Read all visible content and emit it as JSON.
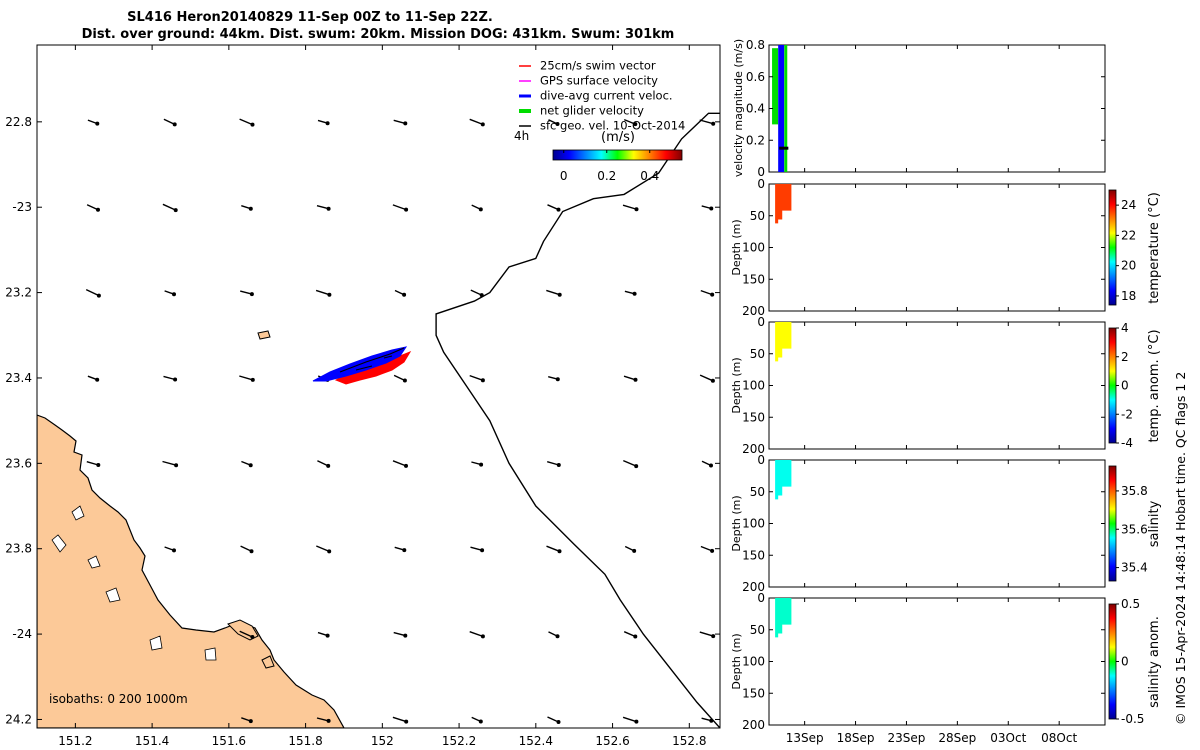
{
  "title": {
    "line1": "SL416 Heron20140829 11-Sep 00Z to 11-Sep 22Z.",
    "line2": "Dist. over ground: 44km. Dist. swum: 20km. Mission DOG: 431km. Swum: 301km"
  },
  "footer": "© IMOS 15-Apr-2024 14:48:14 Hobart time. QC flags 1 2",
  "chart_data": [
    {
      "type": "scatter",
      "name": "map",
      "xlim": [
        151.1,
        152.88
      ],
      "ylim": [
        -24.22,
        -22.62
      ],
      "x_ticks": [
        151.2,
        151.4,
        151.6,
        151.8,
        152,
        152.2,
        152.4,
        152.6,
        152.8
      ],
      "x_tick_labels": [
        "151.2",
        "151.4",
        "151.6",
        "151.8",
        "152",
        "152.2",
        "152.4",
        "152.6",
        "152.8"
      ],
      "y_ticks": [
        -22.8,
        -23,
        -23.2,
        -23.4,
        -23.6,
        -23.8,
        -24,
        -24.2
      ],
      "y_tick_labels": [
        "22.8",
        "-23",
        "23.2",
        "23.4",
        "23.6",
        "23.8",
        "-24",
        "24.2"
      ],
      "legend": [
        {
          "label": "25cm/s swim vector",
          "color": "#ff0000"
        },
        {
          "label": "GPS surface velocity",
          "color": "#ff00ff"
        },
        {
          "label": "dive-avg current veloc.",
          "color": "#0000ff"
        },
        {
          "label": "net glider velocity",
          "color": "#00dd00"
        },
        {
          "label": "sfc geo. vel. 10-Oct-2014",
          "color": "#000000"
        }
      ],
      "scale_label": "4h",
      "colorbar": {
        "label": "(m/s)",
        "ticks": [
          0,
          0.2,
          0.4
        ],
        "tick_labels": [
          "0",
          "0.2",
          "0.4"
        ],
        "range": [
          -0.05,
          0.55
        ]
      },
      "isobaths_label": "isobaths: 0   200  1000m",
      "track": [
        {
          "lon": 151.82,
          "lat": -23.4
        },
        {
          "lon": 151.92,
          "lat": -23.375
        },
        {
          "lon": 152.0,
          "lat": -23.36
        },
        {
          "lon": 152.08,
          "lat": -23.33
        }
      ],
      "isobath_1000m": [
        [
          152.88,
          -22.78
        ],
        [
          152.85,
          -22.78
        ],
        [
          152.78,
          -22.84
        ],
        [
          152.72,
          -22.92
        ],
        [
          152.63,
          -22.97
        ],
        [
          152.55,
          -22.98
        ],
        [
          152.47,
          -23.01
        ],
        [
          152.42,
          -23.08
        ],
        [
          152.4,
          -23.12
        ],
        [
          152.33,
          -23.14
        ],
        [
          152.28,
          -23.2
        ],
        [
          152.24,
          -23.22
        ],
        [
          152.14,
          -23.25
        ],
        [
          152.14,
          -23.27
        ],
        [
          152.14,
          -23.3
        ],
        [
          152.16,
          -23.34
        ],
        [
          152.22,
          -23.42
        ],
        [
          152.28,
          -23.5
        ],
        [
          152.33,
          -23.6
        ],
        [
          152.4,
          -23.7
        ],
        [
          152.5,
          -23.79
        ],
        [
          152.58,
          -23.86
        ],
        [
          152.62,
          -23.92
        ],
        [
          152.68,
          -24.0
        ],
        [
          152.75,
          -24.08
        ],
        [
          152.82,
          -24.16
        ],
        [
          152.88,
          -24.22
        ]
      ]
    },
    {
      "type": "line",
      "name": "velocity",
      "ylabel": "velocity magnitude (m/s)",
      "ylim": [
        0,
        0.8
      ],
      "y_ticks": [
        0,
        0.2,
        0.4,
        0.6,
        0.8
      ],
      "y_tick_labels": [
        "0",
        "0.2",
        "0.4",
        "0.6",
        "0.8"
      ]
    },
    {
      "type": "heatmap",
      "name": "temperature",
      "ylabel": "Depth (m)",
      "y_ticks": [
        0,
        50,
        100,
        150,
        200
      ],
      "cbar_label": "temperature (°C)",
      "cbar_ticks": [
        18,
        20,
        22,
        24
      ],
      "cbar_tick_labels": [
        "18",
        "20",
        "22",
        "24"
      ],
      "cbar_range": [
        17.4,
        25.0
      ],
      "value": 23.6
    },
    {
      "type": "heatmap",
      "name": "temp_anom",
      "ylabel": "Depth (m)",
      "y_ticks": [
        0,
        50,
        100,
        150,
        200
      ],
      "cbar_label": "temp. anom. (°C)",
      "cbar_ticks": [
        -4,
        -2,
        0,
        2,
        4
      ],
      "cbar_tick_labels": [
        "-4",
        "-2",
        "0",
        "2",
        "4"
      ],
      "cbar_range": [
        -4,
        4
      ],
      "value": 1.0
    },
    {
      "type": "heatmap",
      "name": "salinity",
      "ylabel": "Depth (m)",
      "y_ticks": [
        0,
        50,
        100,
        150,
        200
      ],
      "cbar_label": "salinity",
      "cbar_ticks": [
        35.4,
        35.6,
        35.8
      ],
      "cbar_tick_labels": [
        "35.4",
        "35.6",
        "35.8"
      ],
      "cbar_range": [
        35.33,
        35.93
      ],
      "value": 35.56
    },
    {
      "type": "heatmap",
      "name": "salinity_anom",
      "ylabel": "Depth (m)",
      "y_ticks": [
        0,
        50,
        100,
        150,
        200
      ],
      "cbar_label": "salinity anom.",
      "cbar_ticks": [
        -0.5,
        0,
        0.5
      ],
      "cbar_tick_labels": [
        "-0.5",
        "0",
        "0.5"
      ],
      "cbar_range": [
        -0.5,
        0.5
      ],
      "value": -0.1
    }
  ],
  "time_axis": {
    "xlim_days": [
      -1.5,
      31.5
    ],
    "ticks_days": [
      2,
      7,
      12,
      17,
      22,
      27
    ],
    "tick_labels": [
      "13Sep",
      "18Sep",
      "23Sep",
      "28Sep",
      "03Oct",
      "08Oct"
    ]
  }
}
